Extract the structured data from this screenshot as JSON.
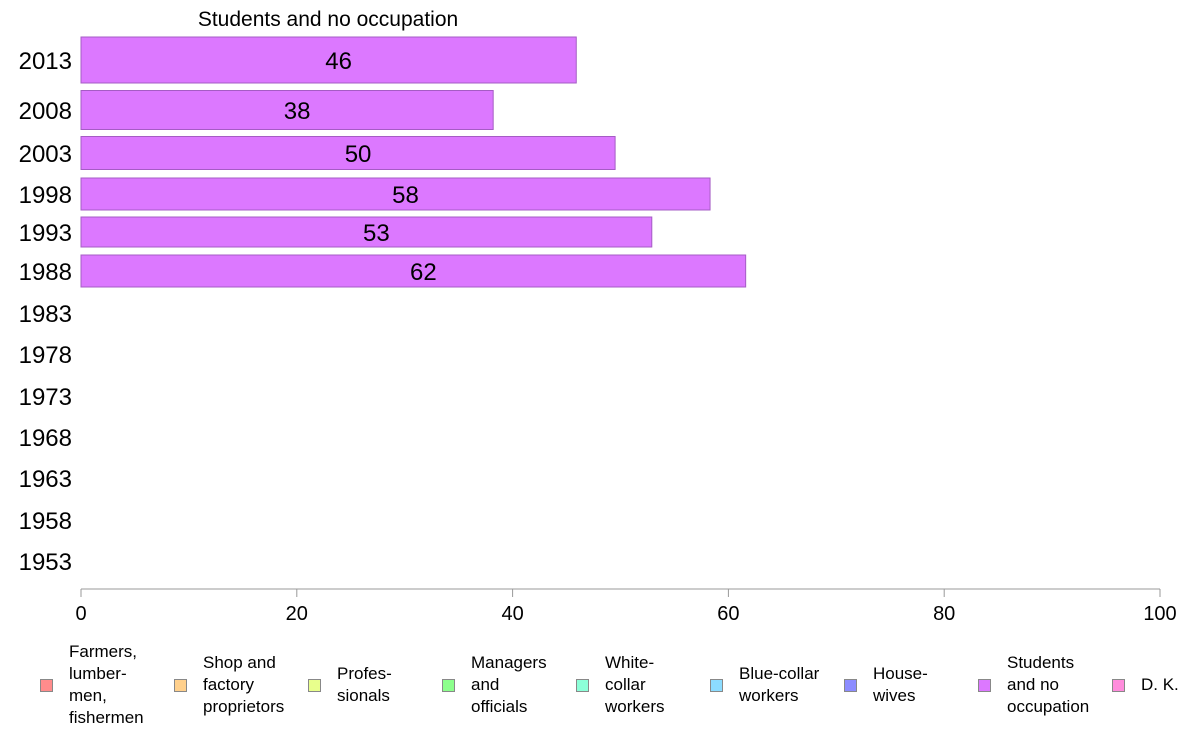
{
  "chart_data": {
    "type": "bar",
    "orientation": "horizontal",
    "title": "Students and no occupation",
    "categories": [
      "2013",
      "2008",
      "2003",
      "1998",
      "1993",
      "1988",
      "1983",
      "1978",
      "1973",
      "1968",
      "1963",
      "1958",
      "1953"
    ],
    "series": [
      {
        "name": "Students and no occupation",
        "values": [
          45.9,
          38.2,
          49.5,
          58.3,
          52.9,
          61.6,
          null,
          null,
          null,
          null,
          null,
          null,
          null
        ],
        "labels": [
          "46",
          "38",
          "50",
          "58",
          "53",
          "62",
          "",
          "",
          "",
          "",
          "",
          "",
          ""
        ],
        "color": "#dc78ff"
      }
    ],
    "xlim": [
      0,
      100
    ],
    "xticks": [
      "0",
      "20",
      "40",
      "60",
      "80",
      "100"
    ],
    "grid": false,
    "legend_position": "bottom"
  },
  "legend": [
    {
      "label": "Farmers,\nlumber-\nmen,\nfishermen",
      "color": "#ff8c8c"
    },
    {
      "label": "Shop and\nfactory\nproprietors",
      "color": "#ffd08c"
    },
    {
      "label": "Profes-\nsionals",
      "color": "#e8ff8c"
    },
    {
      "label": "Managers\nand\nofficials",
      "color": "#8cff8c"
    },
    {
      "label": "White-\ncollar\nworkers",
      "color": "#8cffd8"
    },
    {
      "label": "Blue-collar\nworkers",
      "color": "#8cdcff"
    },
    {
      "label": "House-\nwives",
      "color": "#8c8cff"
    },
    {
      "label": "Students\nand no\noccupation",
      "color": "#dc78ff"
    },
    {
      "label": "D. K.",
      "color": "#ff8cdc"
    }
  ]
}
